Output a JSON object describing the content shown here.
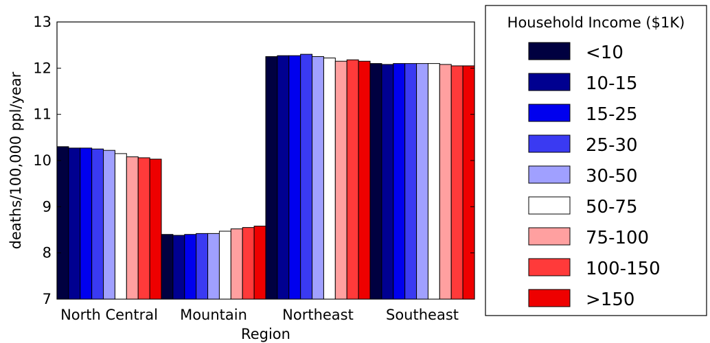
{
  "chart_data": {
    "type": "bar",
    "title": "",
    "xlabel": "Region",
    "ylabel": "deaths/100,000 ppl/year",
    "ylim": [
      7,
      13
    ],
    "yticks": [
      "7",
      "8",
      "9",
      "10",
      "11",
      "12",
      "13"
    ],
    "categories": [
      "North Central",
      "Mountain",
      "Northeast",
      "Southeast"
    ],
    "legend_title": "Household Income ($1K)",
    "legend_position": "right",
    "grid": false,
    "series": [
      {
        "name": "<10",
        "color": "#000040",
        "values": [
          10.3,
          8.4,
          12.25,
          12.1
        ]
      },
      {
        "name": "10-15",
        "color": "#000090",
        "values": [
          10.27,
          8.38,
          12.27,
          12.08
        ]
      },
      {
        "name": "15-25",
        "color": "#0000ee",
        "values": [
          10.27,
          8.4,
          12.27,
          12.1
        ]
      },
      {
        "name": "25-30",
        "color": "#3a3af2",
        "values": [
          10.25,
          8.42,
          12.3,
          12.1
        ]
      },
      {
        "name": "30-50",
        "color": "#a0a0ff",
        "values": [
          10.22,
          8.42,
          12.25,
          12.1
        ]
      },
      {
        "name": "50-75",
        "color": "#ffffff",
        "values": [
          10.15,
          8.47,
          12.22,
          12.1
        ]
      },
      {
        "name": "75-100",
        "color": "#ffa0a0",
        "values": [
          10.08,
          8.52,
          12.15,
          12.08
        ]
      },
      {
        "name": "100-150",
        "color": "#ff3a3a",
        "values": [
          10.06,
          8.55,
          12.18,
          12.05
        ]
      },
      {
        "name": ">150",
        "color": "#ee0000",
        "values": [
          10.03,
          8.58,
          12.15,
          12.05
        ]
      }
    ]
  }
}
